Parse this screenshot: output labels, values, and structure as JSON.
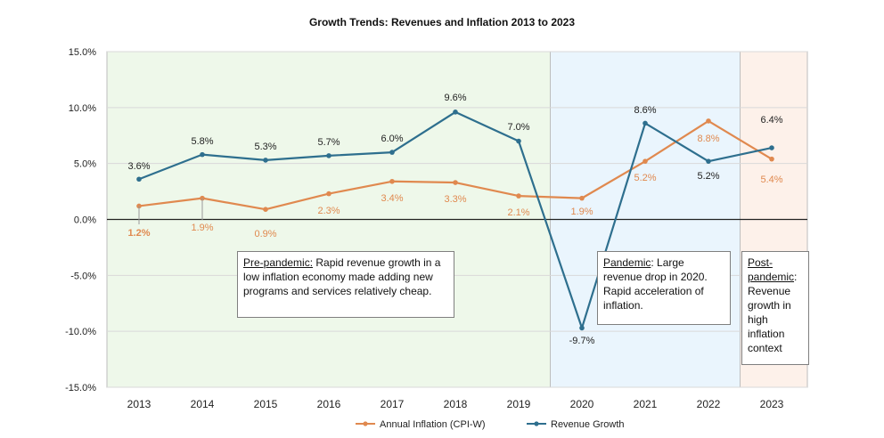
{
  "chart_data": {
    "type": "line",
    "title": "Growth Trends: Revenues and Inflation 2013 to 2023",
    "xlabel": "",
    "ylabel": "",
    "categories": [
      "2013",
      "2014",
      "2015",
      "2016",
      "2017",
      "2018",
      "2019",
      "2020",
      "2021",
      "2022",
      "2023"
    ],
    "y_ticks": [
      "15.0%",
      "10.0%",
      "5.0%",
      "0.0%",
      "-5.0%",
      "-10.0%",
      "-15.0%"
    ],
    "ylim": [
      -15,
      15
    ],
    "grid": true,
    "legend_position": "bottom",
    "series": [
      {
        "name": "Annual Inflation (CPI-W)",
        "color": "#e0894f",
        "values": [
          1.2,
          1.9,
          0.9,
          2.3,
          3.4,
          3.3,
          2.1,
          1.9,
          5.2,
          8.8,
          5.4
        ],
        "labels": [
          "1.2%",
          "1.9%",
          "0.9%",
          "2.3%",
          "3.4%",
          "3.3%",
          "2.1%",
          "1.9%",
          "5.2%",
          "8.8%",
          "5.4%"
        ]
      },
      {
        "name": "Revenue Growth",
        "color": "#2e6f8e",
        "values": [
          3.6,
          5.8,
          5.3,
          5.7,
          6.0,
          9.6,
          7.0,
          -9.7,
          8.6,
          5.2,
          6.4
        ],
        "labels": [
          "3.6%",
          "5.8%",
          "5.3%",
          "5.7%",
          "6.0%",
          "9.6%",
          "7.0%",
          "-9.7%",
          "8.6%",
          "5.2%",
          "6.4%"
        ]
      }
    ],
    "shaded_regions": [
      {
        "name": "pre-pandemic",
        "from": "2013",
        "to": "2019",
        "color": "#eef8ea"
      },
      {
        "name": "pandemic",
        "from": "2020",
        "to": "2022",
        "color": "#eaf5fd"
      },
      {
        "name": "post-pandemic",
        "from": "2023",
        "to": "2023",
        "color": "#fdf1ea"
      }
    ]
  },
  "notes": {
    "pre": {
      "head": "Pre-pandemic:",
      "body": " Rapid revenue growth in a low inflation economy made adding new programs and services relatively cheap."
    },
    "pandemic": {
      "head": "Pandemic",
      "body": ": Large revenue drop in 2020. Rapid acceleration of inflation."
    },
    "post": {
      "head": "Post-pandemic",
      "body": ": Revenue growth in high inflation context"
    }
  }
}
